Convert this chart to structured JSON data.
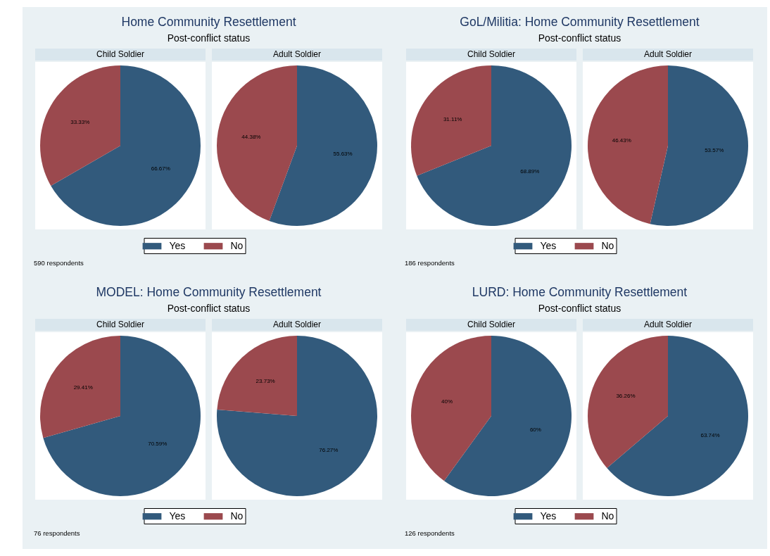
{
  "chart_data": [
    {
      "type": "pie",
      "title": "Home Community Resettlement",
      "subtitle": "Post-conflict status",
      "categories": [
        "Yes",
        "No"
      ],
      "colors": [
        "#325a7c",
        "#9b494e"
      ],
      "legend": "bottom",
      "annotations": [
        "590 respondents"
      ],
      "series": [
        {
          "name": "Child Soldier",
          "values": [
            66.67,
            33.33
          ],
          "value_labels": [
            "66.67%",
            "33.33%"
          ]
        },
        {
          "name": "Adult Soldier",
          "values": [
            55.63,
            44.38
          ],
          "value_labels": [
            "55.63%",
            "44.38%"
          ]
        }
      ]
    },
    {
      "type": "pie",
      "title": "GoL/Militia: Home Community Resettlement",
      "subtitle": "Post-conflict status",
      "categories": [
        "Yes",
        "No"
      ],
      "colors": [
        "#325a7c",
        "#9b494e"
      ],
      "legend": "bottom",
      "annotations": [
        "186 respondents"
      ],
      "series": [
        {
          "name": "Child Soldier",
          "values": [
            68.89,
            31.11
          ],
          "value_labels": [
            "68.89%",
            "31.11%"
          ]
        },
        {
          "name": "Adult Soldier",
          "values": [
            53.57,
            46.43
          ],
          "value_labels": [
            "53.57%",
            "46.43%"
          ]
        }
      ]
    },
    {
      "type": "pie",
      "title": "MODEL: Home Community Resettlement",
      "subtitle": "Post-conflict status",
      "categories": [
        "Yes",
        "No"
      ],
      "colors": [
        "#325a7c",
        "#9b494e"
      ],
      "legend": "bottom",
      "annotations": [
        "76 respondents"
      ],
      "series": [
        {
          "name": "Child Soldier",
          "values": [
            70.59,
            29.41
          ],
          "value_labels": [
            "70.59%",
            "29.41%"
          ]
        },
        {
          "name": "Adult Soldier",
          "values": [
            76.27,
            23.73
          ],
          "value_labels": [
            "76.27%",
            "23.73%"
          ]
        }
      ]
    },
    {
      "type": "pie",
      "title": "LURD: Home Community Resettlement",
      "subtitle": "Post-conflict status",
      "categories": [
        "Yes",
        "No"
      ],
      "colors": [
        "#325a7c",
        "#9b494e"
      ],
      "legend": "bottom",
      "annotations": [
        "126 respondents"
      ],
      "series": [
        {
          "name": "Child Soldier",
          "values": [
            60,
            40
          ],
          "value_labels": [
            "60%",
            "40%"
          ]
        },
        {
          "name": "Adult Soldier",
          "values": [
            63.74,
            36.26
          ],
          "value_labels": [
            "63.74%",
            "36.26%"
          ]
        }
      ]
    }
  ]
}
